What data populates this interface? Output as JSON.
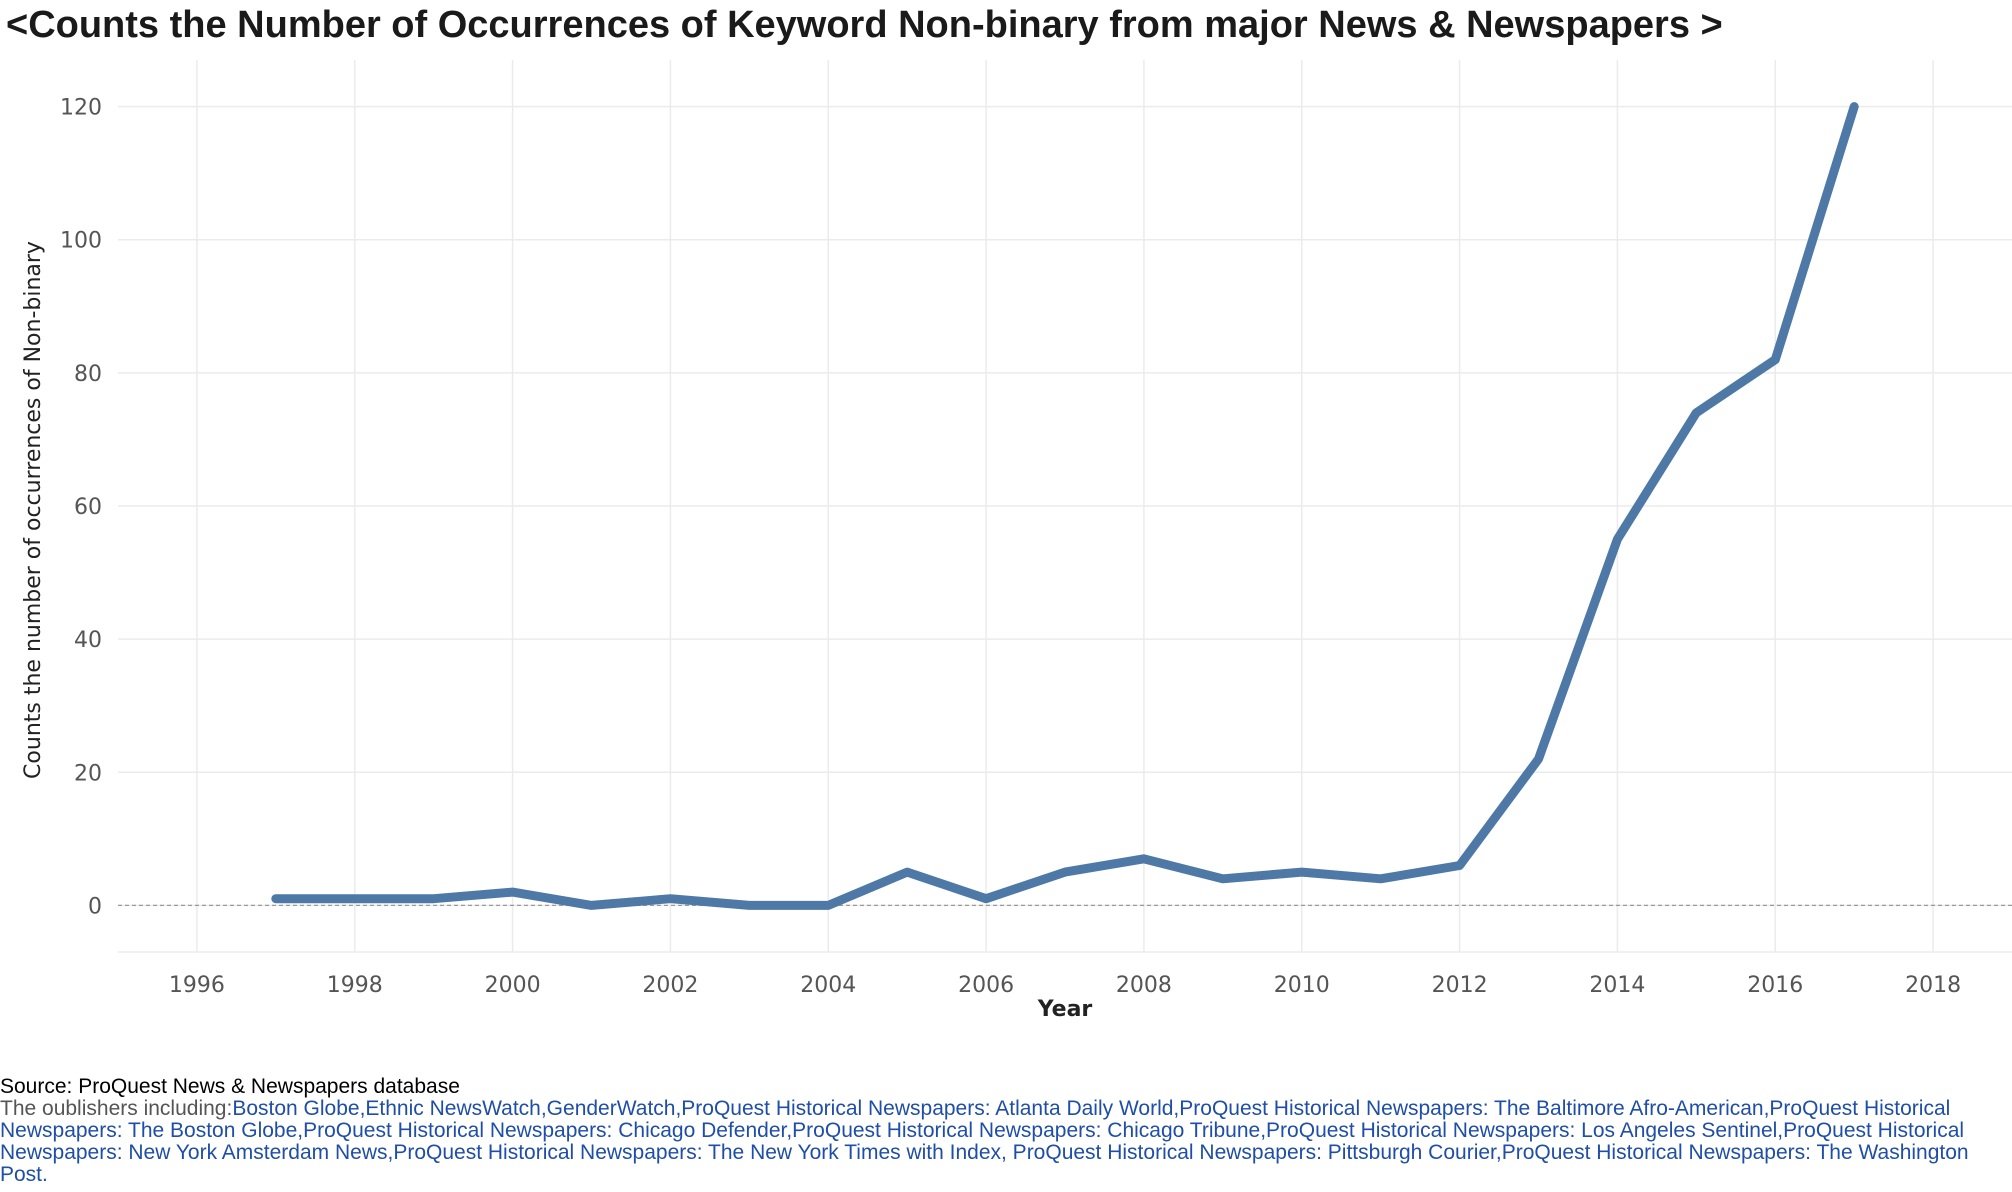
{
  "chart_data": {
    "type": "line",
    "title": "<Counts the Number of Occurrences of Keyword Non-binary from major News & Newspapers >",
    "xlabel": "Year",
    "ylabel": "Counts the number of occurrences of Non-binary",
    "x": [
      1997,
      1998,
      1999,
      2000,
      2001,
      2002,
      2003,
      2004,
      2005,
      2006,
      2007,
      2008,
      2009,
      2010,
      2011,
      2012,
      2013,
      2014,
      2015,
      2016,
      2017
    ],
    "series": [
      {
        "values": [
          1,
          1,
          1,
          2,
          0,
          1,
          0,
          0,
          5,
          1,
          5,
          7,
          4,
          5,
          4,
          6,
          22,
          55,
          74,
          82,
          120
        ]
      }
    ],
    "xlim": [
      1995,
      2019
    ],
    "ylim": [
      -7,
      127
    ],
    "xticks": [
      1996,
      1998,
      2000,
      2002,
      2004,
      2006,
      2008,
      2010,
      2012,
      2014,
      2016,
      2018
    ],
    "yticks": [
      0,
      20,
      40,
      60,
      80,
      100,
      120
    ],
    "grid": true,
    "zero_line": "dashed",
    "line_color": "#4e79a7"
  },
  "footer": {
    "source": "Source: ProQuest News & Newspapers database",
    "publishers_prefix": "The oublishers including:",
    "publishers_list": "Boston Globe,Ethnic NewsWatch,GenderWatch,ProQuest Historical Newspapers: Atlanta Daily World,ProQuest Historical Newspapers: The Baltimore Afro-American,ProQuest Historical Newspapers: The Boston Globe,ProQuest Historical Newspapers: Chicago Defender,ProQuest Historical Newspapers: Chicago Tribune,ProQuest Historical Newspapers: Los Angeles Sentinel,ProQuest Historical Newspapers: New York Amsterdam News,ProQuest Historical Newspapers: The New York Times with Index, ProQuest Historical Newspapers: Pittsburgh Courier,ProQuest Historical Newspapers: The Washington Post."
  }
}
